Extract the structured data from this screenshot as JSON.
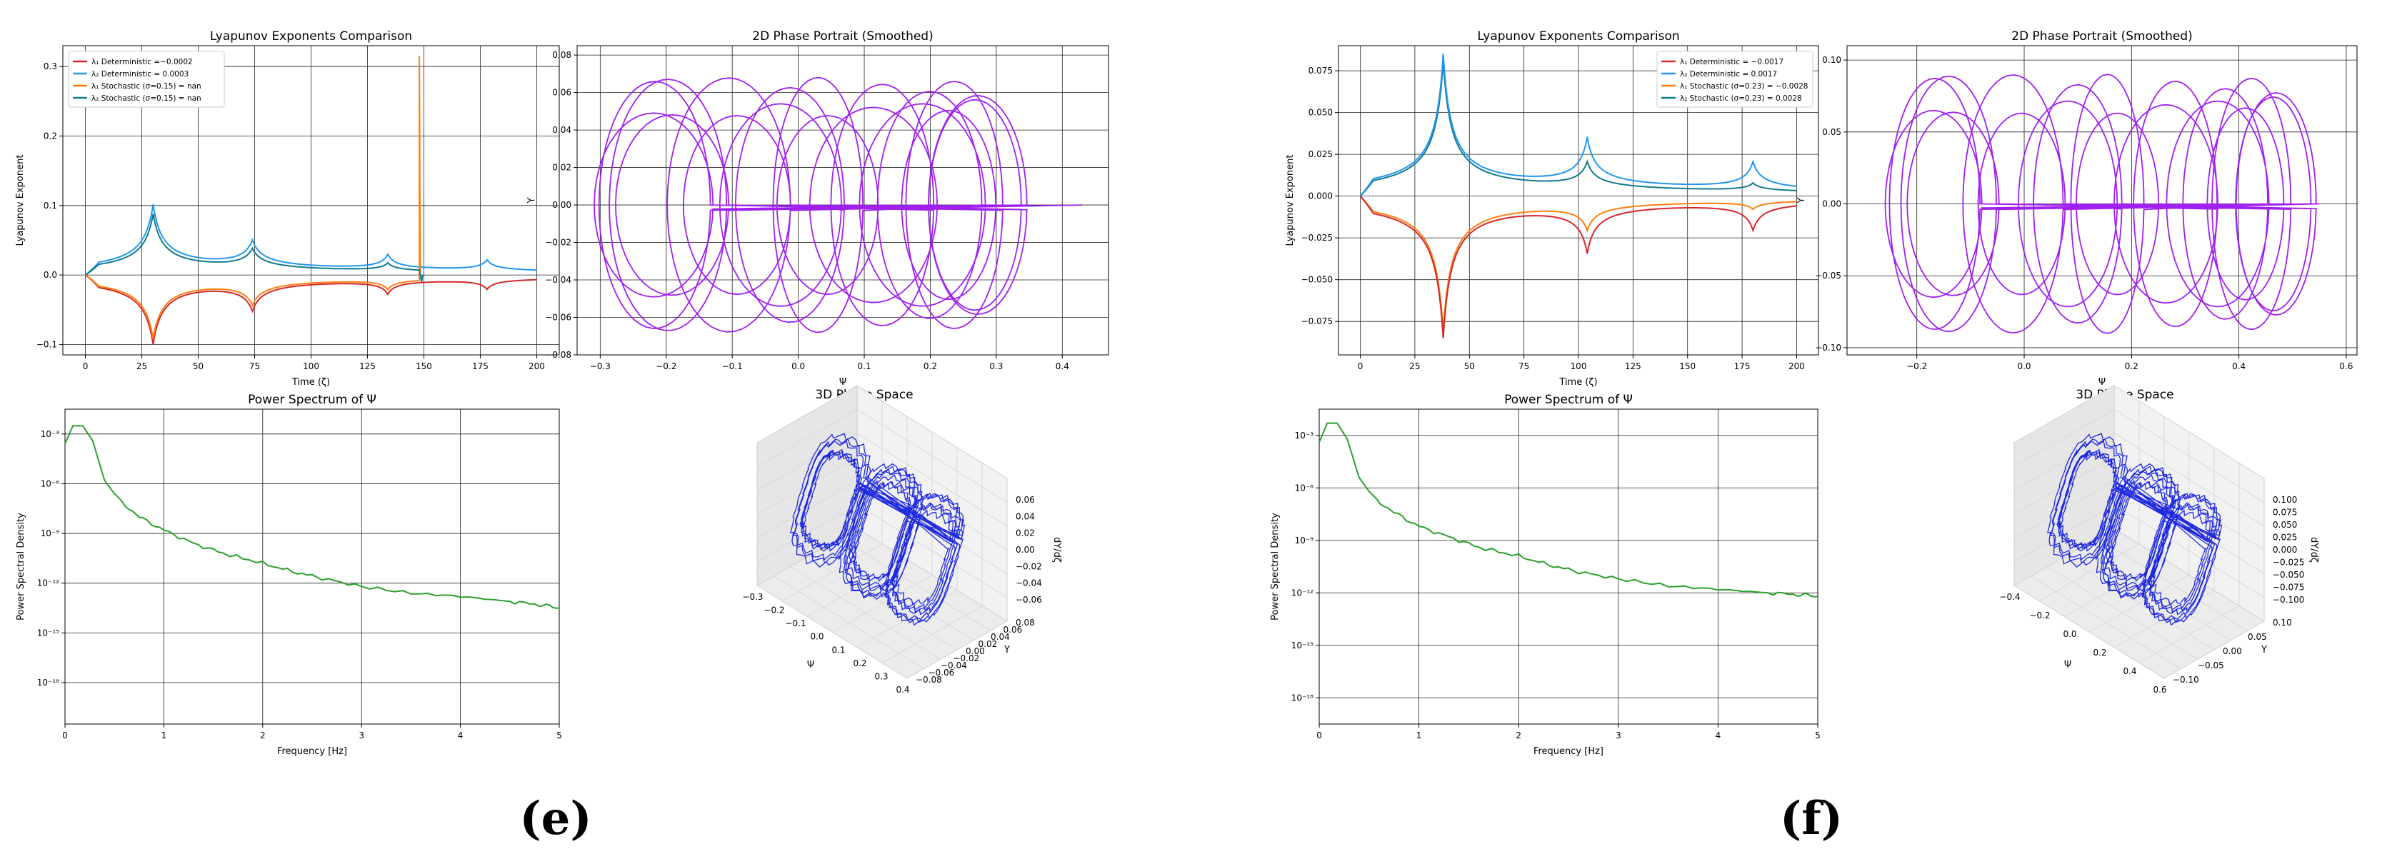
{
  "figure": {
    "captions": [
      "(e)",
      "(f)"
    ]
  },
  "colors": {
    "red": "#d62728",
    "blue": "#2196f3",
    "orange": "#ff7f0e",
    "teal": "#117a8b",
    "phase": "#a020f0",
    "spec": "#2ca02c",
    "phase3d": "#1f2ae0"
  },
  "chart_data": [
    {
      "id": "e-lyap",
      "type": "line",
      "title": "Lyapunov Exponents Comparison",
      "xlabel": "Time (ζ)",
      "ylabel": "Lyapunov Exponent",
      "xlim": [
        -10,
        210
      ],
      "ylim": [
        -0.115,
        0.33
      ],
      "xticks": [
        0,
        25,
        50,
        75,
        100,
        125,
        150,
        175,
        200
      ],
      "yticks": [
        -0.1,
        0,
        0.1,
        0.2,
        0.3
      ],
      "grid": true,
      "legend": "top-left",
      "series": [
        {
          "name": "λ₁ Deterministic =−0.0002",
          "color": "red",
          "peaks": [
            [
              30,
              -0.095,
              4
            ],
            [
              74,
              -0.042,
              4
            ],
            [
              134,
              -0.02,
              3
            ],
            [
              178,
              -0.015,
              3
            ]
          ]
        },
        {
          "name": "λ₂ Deterministic = 0.0003",
          "color": "blue",
          "peaks": [
            [
              30,
              0.097,
              4
            ],
            [
              74,
              0.04,
              4
            ],
            [
              134,
              0.022,
              3
            ],
            [
              178,
              0.016,
              3
            ]
          ]
        },
        {
          "name": "λ₁ Stochastic (σ=0.15) = nan",
          "color": "orange",
          "peaks": [
            [
              30,
              -0.088,
              4
            ],
            [
              74,
              -0.035,
              4
            ],
            [
              134,
              -0.015,
              3
            ]
          ],
          "end": 148,
          "spike": [
            148,
            0.315
          ]
        },
        {
          "name": "λ₂ Stochastic (σ=0.15) = nan",
          "color": "teal",
          "peaks": [
            [
              30,
              0.085,
              4
            ],
            [
              74,
              0.03,
              4
            ],
            [
              134,
              0.012,
              3
            ]
          ],
          "end": 148,
          "spike": [
            149,
            -0.01
          ]
        }
      ]
    },
    {
      "id": "e-phase",
      "type": "line",
      "title": "2D Phase Portrait (Smoothed)",
      "xlabel": "Ψ",
      "ylabel": "Υ",
      "xlim": [
        -0.335,
        0.47
      ],
      "ylim": [
        -0.08,
        0.085
      ],
      "xticks": [
        -0.3,
        -0.2,
        -0.1,
        0.0,
        0.1,
        0.2,
        0.3,
        0.4
      ],
      "yticks": [
        -0.08,
        -0.06,
        -0.04,
        -0.02,
        0.0,
        0.02,
        0.04,
        0.06,
        0.08
      ],
      "grid": true,
      "loops": {
        "count": 18,
        "center_min": -0.22,
        "center_max": 0.28,
        "rx": 0.085,
        "ry": 0.068,
        "end_x": 0.43
      }
    },
    {
      "id": "e-spec",
      "type": "line",
      "title": "Power Spectrum of Ψ",
      "xlabel": "Frequency [Hz]",
      "ylabel": "Power Spectral Density",
      "xlim": [
        0,
        5
      ],
      "ylim_log10": [
        -20.5,
        -1.5
      ],
      "xticks": [
        0,
        1,
        2,
        3,
        4,
        5
      ],
      "yticks": [
        {
          "v": -3,
          "label": "10⁻³"
        },
        {
          "v": -6,
          "label": "10⁻⁶"
        },
        {
          "v": -9,
          "label": "10⁻⁹"
        },
        {
          "v": -12,
          "label": "10⁻¹²"
        },
        {
          "v": -15,
          "label": "10⁻¹⁵"
        },
        {
          "v": -18,
          "label": "10⁻¹⁸"
        }
      ],
      "grid": true,
      "points": [
        [
          0,
          -3.6
        ],
        [
          0.08,
          -2.5
        ],
        [
          0.18,
          -2.5
        ],
        [
          0.28,
          -3.4
        ],
        [
          0.4,
          -5.8
        ],
        [
          0.55,
          -7.0
        ],
        [
          0.75,
          -8.0
        ],
        [
          1.0,
          -8.8
        ],
        [
          1.3,
          -9.6
        ],
        [
          1.6,
          -10.2
        ],
        [
          2.0,
          -10.8
        ],
        [
          2.3,
          -11.3
        ],
        [
          2.6,
          -11.7
        ],
        [
          3.0,
          -12.2
        ],
        [
          3.5,
          -12.6
        ],
        [
          4.0,
          -12.8
        ],
        [
          4.5,
          -13.1
        ],
        [
          4.8,
          -13.3
        ],
        [
          5.0,
          -13.5
        ]
      ]
    },
    {
      "id": "e-3d",
      "type": "line",
      "title": "3D Phase Space",
      "xlabel": "Ψ",
      "ylabel": "Υ",
      "zlabel": "dΥ/dζ",
      "xticks": [
        "−0.3",
        "−0.2",
        "−0.1",
        "0.0",
        "0.1",
        "0.2",
        "0.3",
        "0.4"
      ],
      "yticks": [
        "0.08",
        "0.06",
        "0.04",
        "0.02",
        "0.00",
        "−0.02",
        "−0.04",
        "−0.06",
        "−0.08"
      ],
      "zticks": [
        "0.06",
        "0.04",
        "0.02",
        "0.00",
        "−0.02",
        "−0.04",
        "−0.06"
      ]
    },
    {
      "id": "f-lyap",
      "type": "line",
      "title": "Lyapunov Exponents Comparison",
      "xlabel": "Time (ζ)",
      "ylabel": "Lyapunov Exponent",
      "xlim": [
        -10,
        210
      ],
      "ylim": [
        -0.095,
        0.09
      ],
      "xticks": [
        0,
        25,
        50,
        75,
        100,
        125,
        150,
        175,
        200
      ],
      "yticks": [
        -0.075,
        -0.05,
        -0.025,
        0,
        0.025,
        0.05,
        0.075
      ],
      "grid": true,
      "legend": "top-right",
      "series": [
        {
          "name": "λ₁ Deterministic = −0.0017",
          "color": "red",
          "peaks": [
            [
              38,
              -0.083,
              3.5
            ],
            [
              104,
              -0.029,
              3.5
            ],
            [
              180,
              -0.017,
              3.5
            ]
          ]
        },
        {
          "name": "λ₂ Deterministic = 0.0017",
          "color": "blue",
          "peaks": [
            [
              38,
              0.083,
              3.5
            ],
            [
              104,
              0.03,
              3.5
            ],
            [
              180,
              0.017,
              3.5
            ]
          ]
        },
        {
          "name": "λ₁ Stochastic (σ=0.23) = −0.0028",
          "color": "orange",
          "peaks": [
            [
              38,
              -0.08,
              3.5
            ],
            [
              104,
              -0.016,
              3.5
            ],
            [
              180,
              -0.005,
              3.5
            ]
          ]
        },
        {
          "name": "λ₂ Stochastic (σ=0.23) = 0.0028",
          "color": "teal",
          "peaks": [
            [
              38,
              0.08,
              3.5
            ],
            [
              104,
              0.016,
              3.5
            ],
            [
              180,
              0.005,
              3.5
            ]
          ]
        }
      ]
    },
    {
      "id": "f-phase",
      "type": "line",
      "title": "2D Phase Portrait (Smoothed)",
      "xlabel": "Ψ",
      "ylabel": "Υ",
      "xlim": [
        -0.33,
        0.62
      ],
      "ylim": [
        -0.105,
        0.11
      ],
      "xticks": [
        -0.2,
        0.0,
        0.2,
        0.4,
        0.6
      ],
      "yticks": [
        -0.1,
        -0.05,
        0.0,
        0.05,
        0.1
      ],
      "grid": true,
      "loops": {
        "count": 18,
        "center_min": -0.17,
        "center_max": 0.48,
        "rx": 0.085,
        "ry": 0.09,
        "end_x": 0.55
      }
    },
    {
      "id": "f-spec",
      "type": "line",
      "title": "Power Spectrum of Ψ",
      "xlabel": "Frequency [Hz]",
      "ylabel": "Power Spectral Density",
      "xlim": [
        0,
        5
      ],
      "ylim_log10": [
        -19.5,
        -1.5
      ],
      "xticks": [
        0,
        1,
        2,
        3,
        4,
        5
      ],
      "yticks": [
        {
          "v": -3,
          "label": "10⁻³"
        },
        {
          "v": -6,
          "label": "10⁻⁶"
        },
        {
          "v": -9,
          "label": "10⁻⁹"
        },
        {
          "v": -12,
          "label": "10⁻¹²"
        },
        {
          "v": -15,
          "label": "10⁻¹⁵"
        },
        {
          "v": -18,
          "label": "10⁻¹⁸"
        }
      ],
      "grid": true,
      "points": [
        [
          0,
          -3.4
        ],
        [
          0.08,
          -2.3
        ],
        [
          0.18,
          -2.3
        ],
        [
          0.28,
          -3.2
        ],
        [
          0.4,
          -5.4
        ],
        [
          0.55,
          -6.6
        ],
        [
          0.75,
          -7.4
        ],
        [
          1.0,
          -8.2
        ],
        [
          1.3,
          -8.8
        ],
        [
          1.6,
          -9.4
        ],
        [
          2.0,
          -9.9
        ],
        [
          2.3,
          -10.4
        ],
        [
          2.6,
          -10.8
        ],
        [
          3.0,
          -11.2
        ],
        [
          3.5,
          -11.6
        ],
        [
          4.0,
          -11.8
        ],
        [
          4.5,
          -12.0
        ],
        [
          4.8,
          -12.1
        ],
        [
          5.0,
          -12.2
        ]
      ]
    },
    {
      "id": "f-3d",
      "type": "line",
      "title": "3D Phase Space",
      "xlabel": "Ψ",
      "ylabel": "Υ",
      "zlabel": "dΥ/dζ",
      "xticks": [
        "−0.4",
        "−0.2",
        "0.0",
        "0.2",
        "0.4",
        "0.6"
      ],
      "yticks": [
        "0.10",
        "0.05",
        "0.00",
        "−0.05",
        "−0.10"
      ],
      "zticks": [
        "0.100",
        "0.075",
        "0.050",
        "0.025",
        "0.000",
        "−0.025",
        "−0.050",
        "−0.075",
        "−0.100"
      ]
    }
  ]
}
